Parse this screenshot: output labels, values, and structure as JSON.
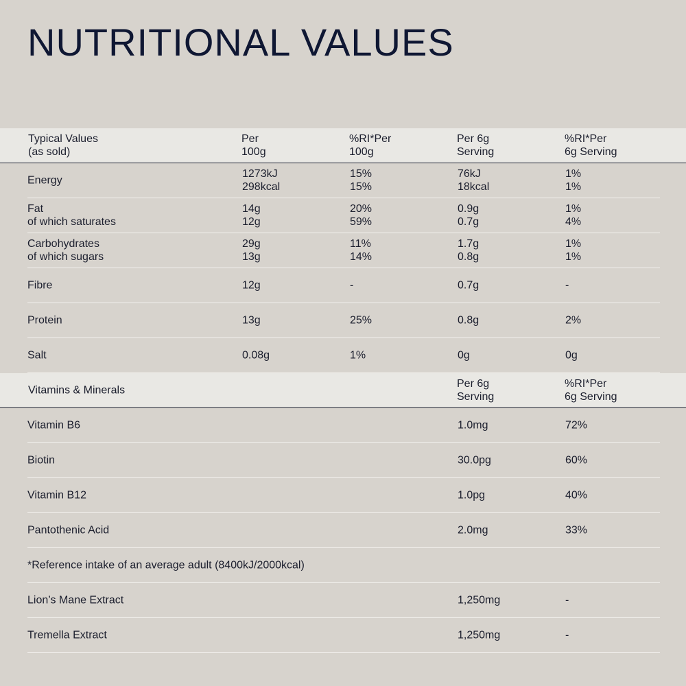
{
  "title": "NUTRITIONAL VALUES",
  "nutrition": {
    "headers": [
      "Typical Values\n(as sold)",
      "Per\n100g",
      "%RI*Per\n100g",
      "Per 6g\nServing",
      "%RI*Per\n6g Serving"
    ],
    "rows": [
      {
        "name": "Energy",
        "per100": "1273kJ\n298kcal",
        "ri100": "15%\n15%",
        "perServing": "76kJ\n18kcal",
        "riServing": "1%\n1%"
      },
      {
        "name": "Fat\nof which saturates",
        "per100": "14g\n12g",
        "ri100": "20%\n59%",
        "perServing": "0.9g\n0.7g",
        "riServing": "1%\n4%"
      },
      {
        "name": "Carbohydrates\nof which sugars",
        "per100": "29g\n13g",
        "ri100": "11%\n14%",
        "perServing": "1.7g\n0.8g",
        "riServing": "1%\n1%"
      },
      {
        "name": "Fibre",
        "per100": "12g",
        "ri100": "-",
        "perServing": "0.7g",
        "riServing": "-"
      },
      {
        "name": "Protein",
        "per100": "13g",
        "ri100": "25%",
        "perServing": "0.8g",
        "riServing": "2%"
      },
      {
        "name": "Salt",
        "per100": "0.08g",
        "ri100": "1%",
        "perServing": "0g",
        "riServing": "0g"
      }
    ]
  },
  "vitamins": {
    "header": "Vitamins & Minerals",
    "col_per_serving": "Per 6g\nServing",
    "col_ri_serving": "%RI*Per\n6g Serving",
    "rows": [
      {
        "name": "Vitamin B6",
        "perServing": "1.0mg",
        "riServing": "72%"
      },
      {
        "name": "Biotin",
        "perServing": "30.0pg",
        "riServing": "60%"
      },
      {
        "name": "Vitamin B12",
        "perServing": "1.0pg",
        "riServing": "40%"
      },
      {
        "name": "Pantothenic Acid",
        "perServing": "2.0mg",
        "riServing": "33%"
      }
    ]
  },
  "footnote": "*Reference intake of an average adult (8400kJ/2000kcal)",
  "extracts": [
    {
      "name": "Lion’s Mane Extract",
      "perServing": "1,250mg",
      "riServing": "-"
    },
    {
      "name": "Tremella Extract",
      "perServing": "1,250mg",
      "riServing": "-"
    }
  ]
}
